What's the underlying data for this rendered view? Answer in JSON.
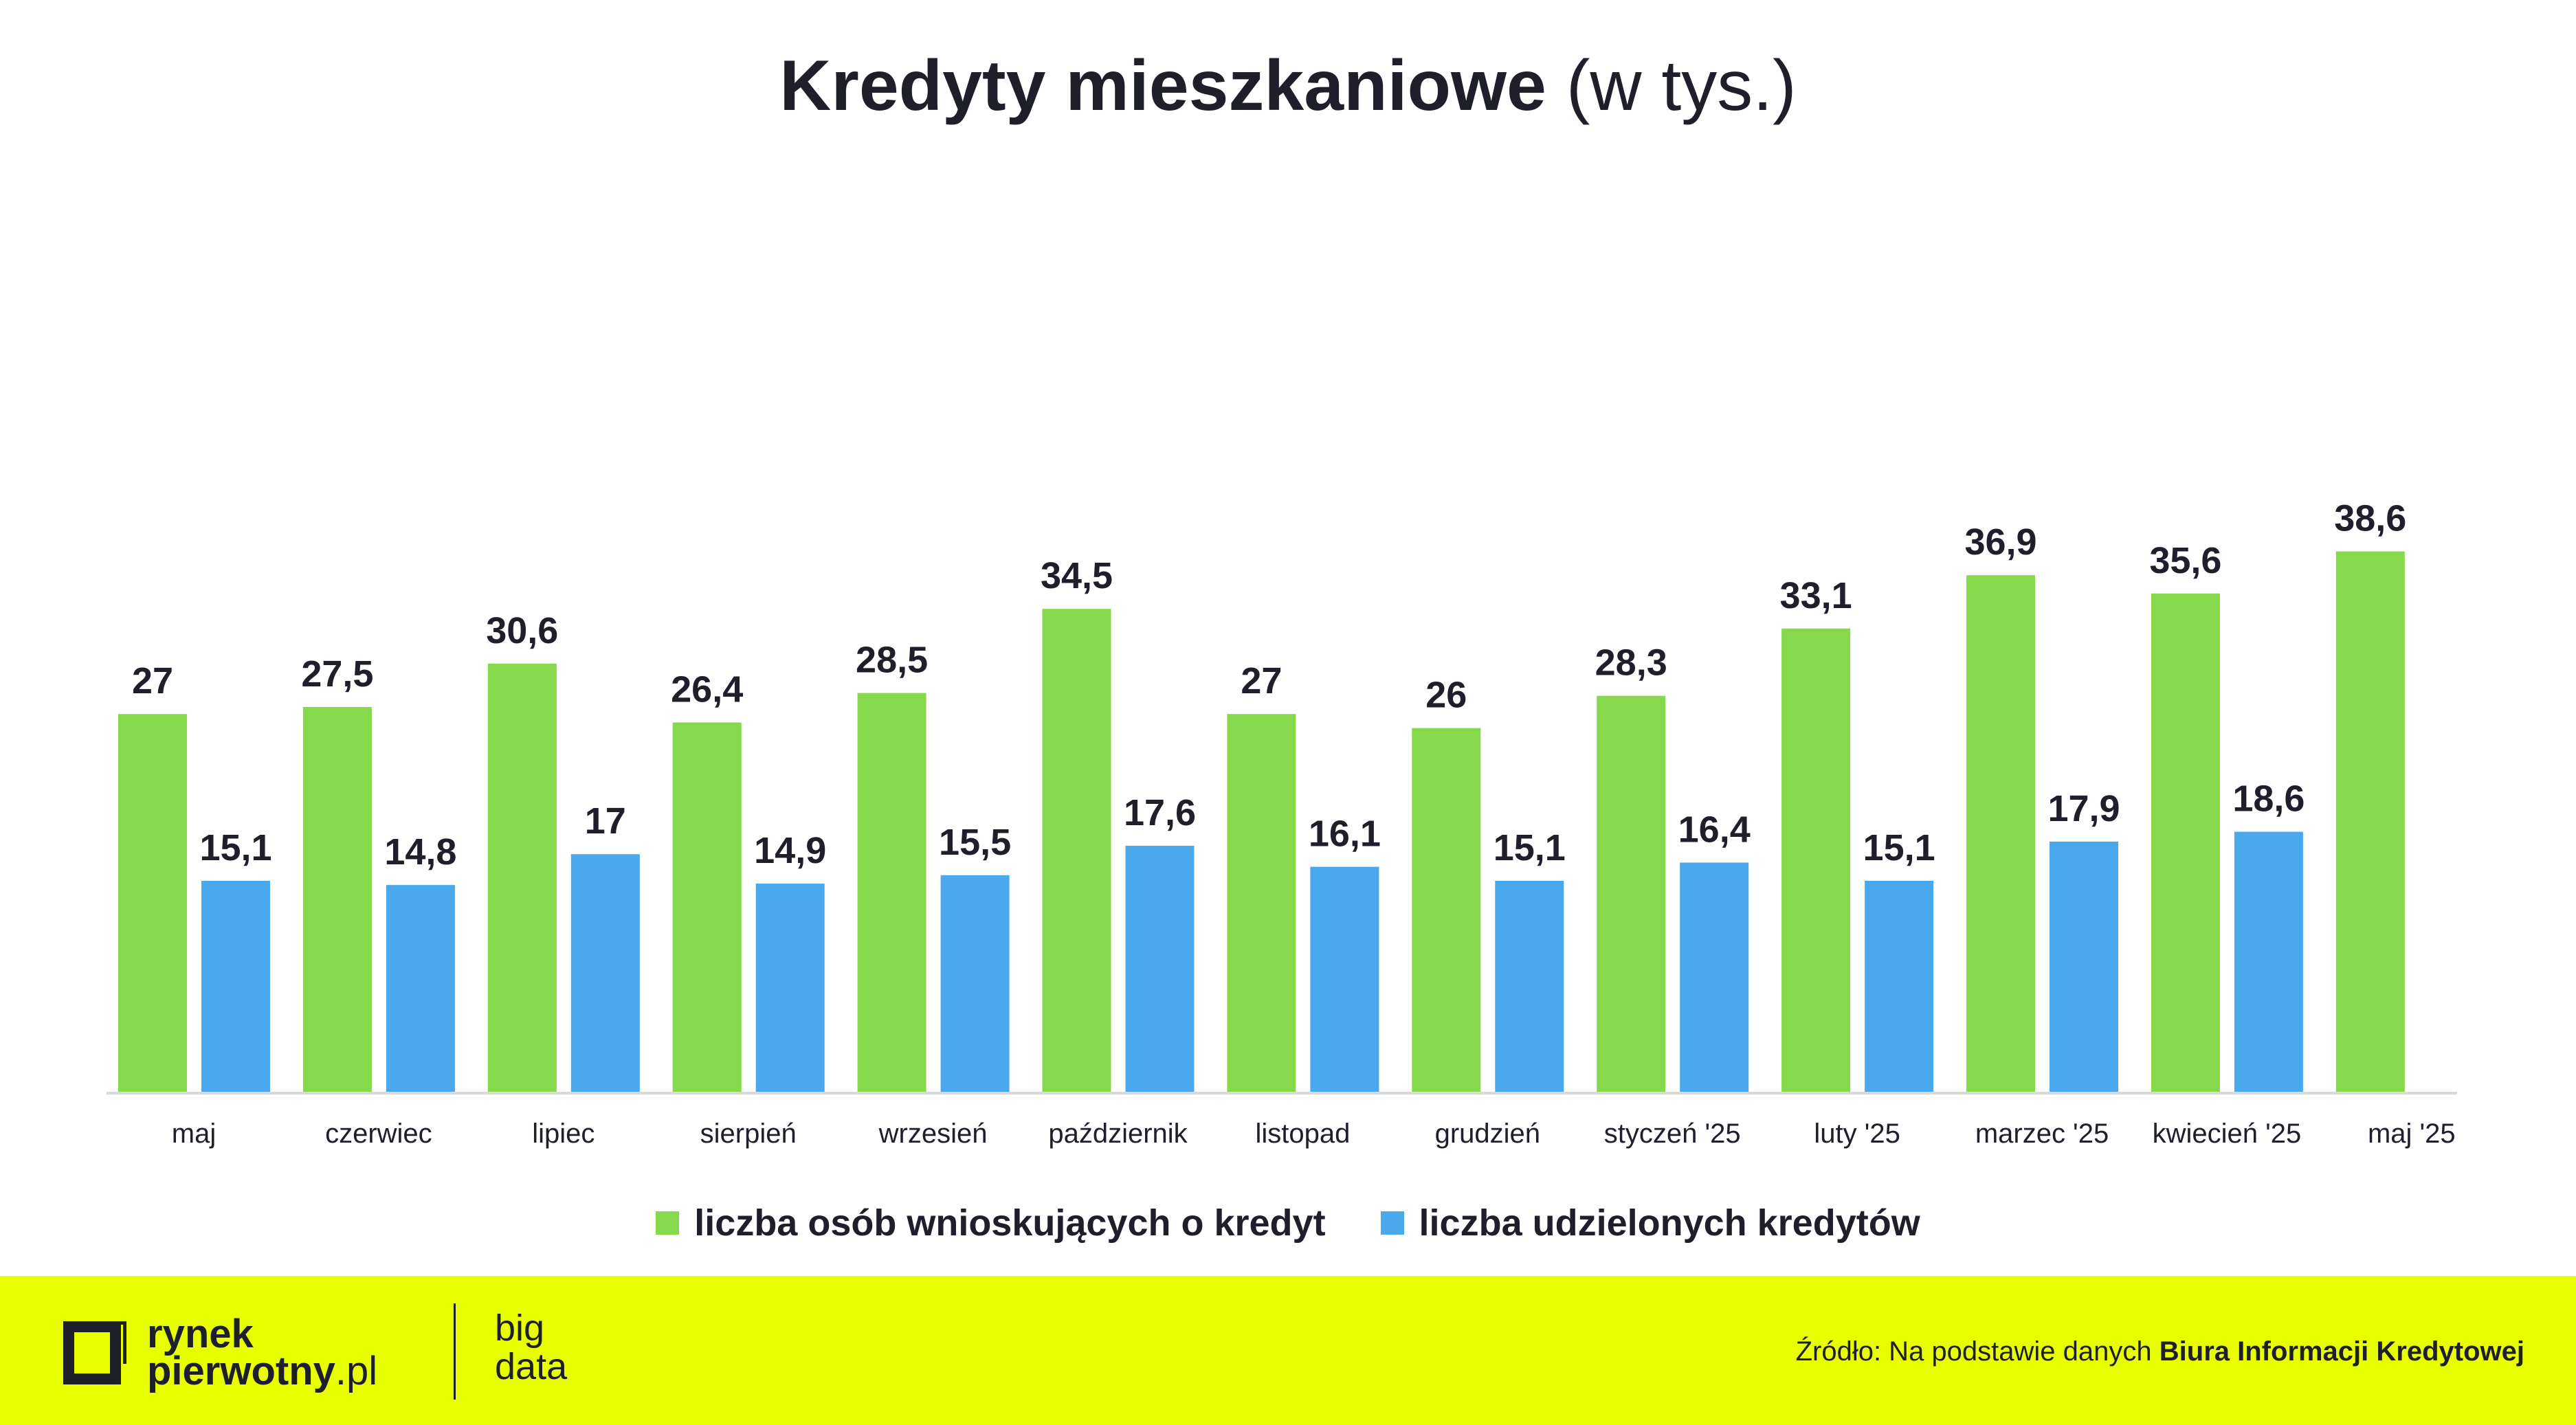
{
  "title": {
    "main": "Kredyty mieszkaniowe",
    "unit": "(w tys.)"
  },
  "chart_data": {
    "type": "bar",
    "categories": [
      "maj",
      "czerwiec",
      "lipiec",
      "sierpień",
      "wrzesień",
      "październik",
      "listopad",
      "grudzień",
      "styczeń '25",
      "luty '25",
      "marzec '25",
      "kwiecień '25",
      "maj '25"
    ],
    "series": [
      {
        "name": "liczba osób wnioskujących o kredyt",
        "color": "#86d84c",
        "values": [
          27,
          27.5,
          30.6,
          26.4,
          28.5,
          34.5,
          27,
          26,
          28.3,
          33.1,
          36.9,
          35.6,
          38.6
        ],
        "labels": [
          "27",
          "27,5",
          "30,6",
          "26,4",
          "28,5",
          "34,5",
          "27",
          "26",
          "28,3",
          "33,1",
          "36,9",
          "35,6",
          "38,6"
        ]
      },
      {
        "name": "liczba udzielonych kredytów",
        "color": "#4aa9ec",
        "values": [
          15.1,
          14.8,
          17,
          14.9,
          15.5,
          17.6,
          16.1,
          15.1,
          16.4,
          15.1,
          17.9,
          18.6,
          null
        ],
        "labels": [
          "15,1",
          "14,8",
          "17",
          "14,9",
          "15,5",
          "17,6",
          "16,1",
          "15,1",
          "16,4",
          "15,1",
          "17,9",
          "18,6",
          ""
        ]
      }
    ],
    "ylim": [
      0,
      40
    ],
    "grid": false,
    "legend_placement": "bottom"
  },
  "legend": {
    "items": [
      {
        "label": "liczba osób wnioskujących o kredyt",
        "color": "#86d84c"
      },
      {
        "label": "liczba udzielonych kredytów",
        "color": "#4aa9ec"
      }
    ]
  },
  "footer": {
    "background": "#e8ff00",
    "logo": {
      "line1": "rynek",
      "line2_main": "pierwotny",
      "line2_suffix": ".pl",
      "icon": "square-frame-logo-icon"
    },
    "big_data": {
      "line1": "big",
      "line2": "data"
    },
    "source": {
      "prefix": "Źródło: Na podstawie danych ",
      "strong": "Biura Informacji Kredytowej"
    }
  }
}
